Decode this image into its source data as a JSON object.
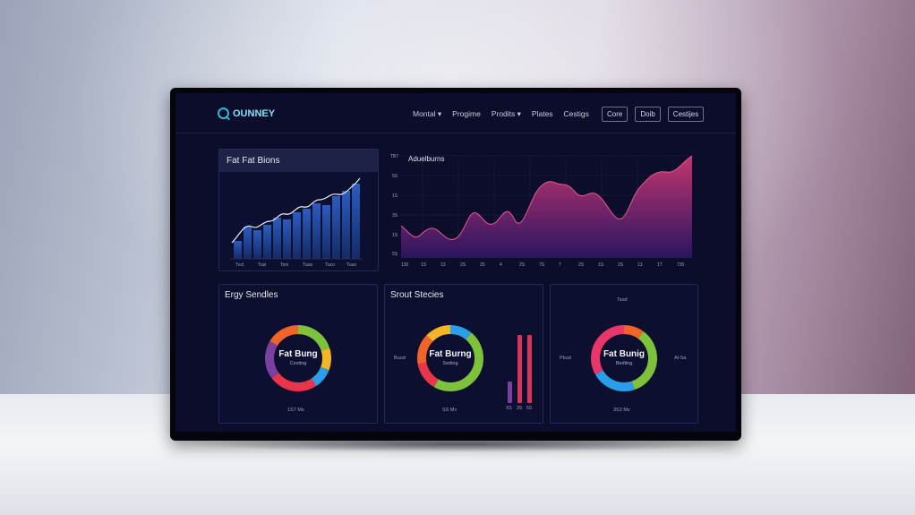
{
  "header": {
    "brand": "OUNNEY",
    "nav": [
      "Montal",
      "Progime",
      "Prodits",
      "Plates",
      "Cestigs"
    ],
    "buttons": [
      "Core",
      "Doib",
      "Cestijes"
    ]
  },
  "card_fat": {
    "title": "Fat Fat Bions",
    "x_ticks": [
      "Txct",
      "Tusi",
      "Toni",
      "Tusa",
      "Tuco",
      "Tuuo"
    ]
  },
  "card_area": {
    "title": "Aduelburns",
    "y_ticks": [
      "TB7",
      "5S",
      "1S",
      "3S",
      "1S",
      "5S"
    ],
    "x_ticks": [
      "130",
      "1S",
      "13",
      "2S",
      "25",
      "4",
      "2S",
      "7S",
      "7",
      "2S",
      "1S",
      "2S",
      "13",
      "1T",
      "730"
    ]
  },
  "donut1": {
    "title": "Ergy Sendles",
    "label": "Fat Bung",
    "sub": "Cesting",
    "footer": "1S7 Ms"
  },
  "donut2": {
    "title": "Srout Stecies",
    "label": "Fat Burng",
    "sub": "Seding",
    "footer": "SS Mv",
    "side": "Buod",
    "bar_ticks": [
      "XS",
      "3S",
      "5S"
    ]
  },
  "donut3": {
    "header": "Tsod",
    "label": "Fat Bunig",
    "sub": "Bedling",
    "footer": "3S3 Mv",
    "side_left": "Pbod",
    "side_right": "Al-Sa"
  },
  "colors": {
    "screen_bg": "#0b0d2a",
    "accent_blue": "#2f5fb8",
    "accent_magenta": "#b0356e",
    "green": "#7dc23a",
    "orange": "#f0642a",
    "red": "#e8354a",
    "purple": "#7b3fa0",
    "yellow": "#f5b528",
    "sky": "#2a9ee8"
  }
}
